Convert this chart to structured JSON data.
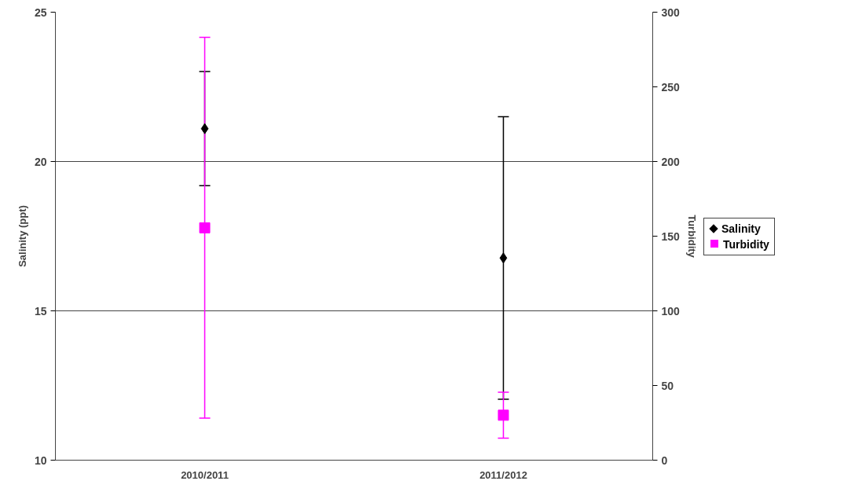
{
  "chart_data": {
    "type": "scatter",
    "ylabel": "Salinity (ppt)",
    "y2label": "Turbidity",
    "categories": [
      "2010/2011",
      "2011/2012"
    ],
    "ylim": [
      10,
      25
    ],
    "yticks": [
      10,
      15,
      20,
      25
    ],
    "y2lim": [
      0,
      300
    ],
    "y2ticks": [
      0,
      50,
      100,
      150,
      200,
      250,
      300
    ],
    "grid": "y",
    "legend": "right",
    "series": [
      {
        "name": "Salinity",
        "color": "#000000",
        "marker": "diamond",
        "values": [
          21.1,
          16.77
        ],
        "errors": [
          1.91,
          4.73
        ]
      },
      {
        "name": "Turbidity",
        "color": "#ff00ff",
        "marker": "square",
        "axis": "y2",
        "values": [
          155.6,
          30.1
        ],
        "errors": [
          127.5,
          15.4
        ]
      }
    ]
  }
}
